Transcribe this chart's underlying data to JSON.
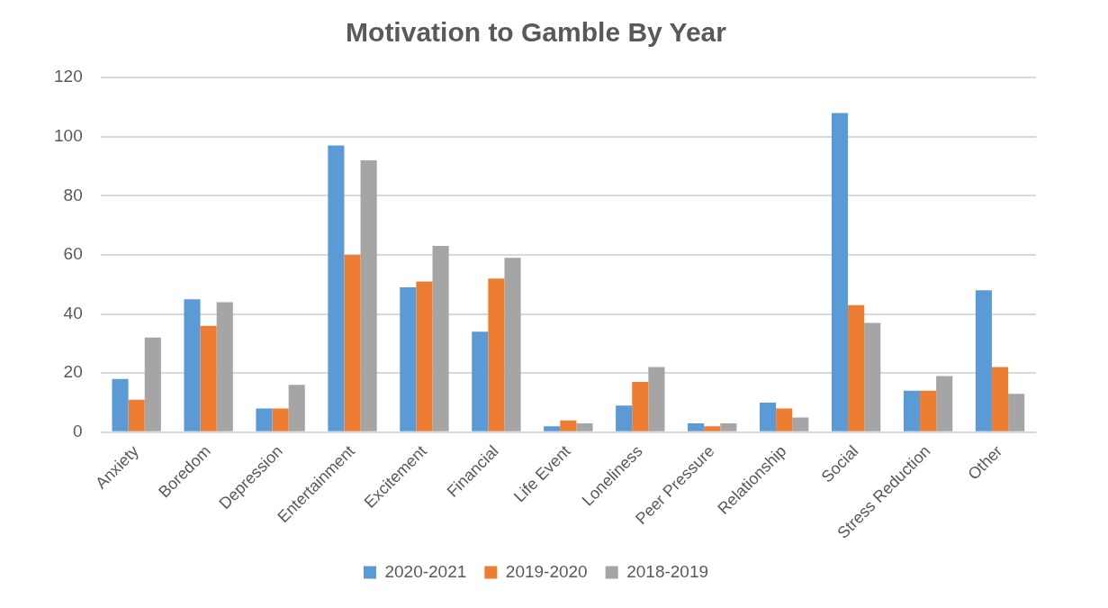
{
  "chart_data": {
    "type": "bar",
    "title": "Motivation to Gamble By Year",
    "categories": [
      "Anxiety",
      "Boredom",
      "Depression",
      "Entertainment",
      "Excitement",
      "Financial",
      "Life Event",
      "Loneliness",
      "Peer Pressure",
      "Relationship",
      "Social",
      "Stress Reduction",
      "Other"
    ],
    "series": [
      {
        "name": "2020-2021",
        "color": "#5b9bd5",
        "values": [
          18,
          45,
          8,
          97,
          49,
          34,
          2,
          9,
          3,
          10,
          108,
          14,
          48
        ]
      },
      {
        "name": "2019-2020",
        "color": "#ed7d31",
        "values": [
          11,
          36,
          8,
          60,
          51,
          52,
          4,
          17,
          2,
          8,
          43,
          14,
          22
        ]
      },
      {
        "name": "2018-2019",
        "color": "#a5a5a5",
        "values": [
          32,
          44,
          16,
          92,
          63,
          59,
          3,
          22,
          3,
          5,
          37,
          19,
          13
        ]
      }
    ],
    "ylim": [
      0,
      120
    ],
    "yticks": [
      0,
      20,
      40,
      60,
      80,
      100,
      120
    ],
    "grid": "y",
    "legend": "bottom"
  }
}
